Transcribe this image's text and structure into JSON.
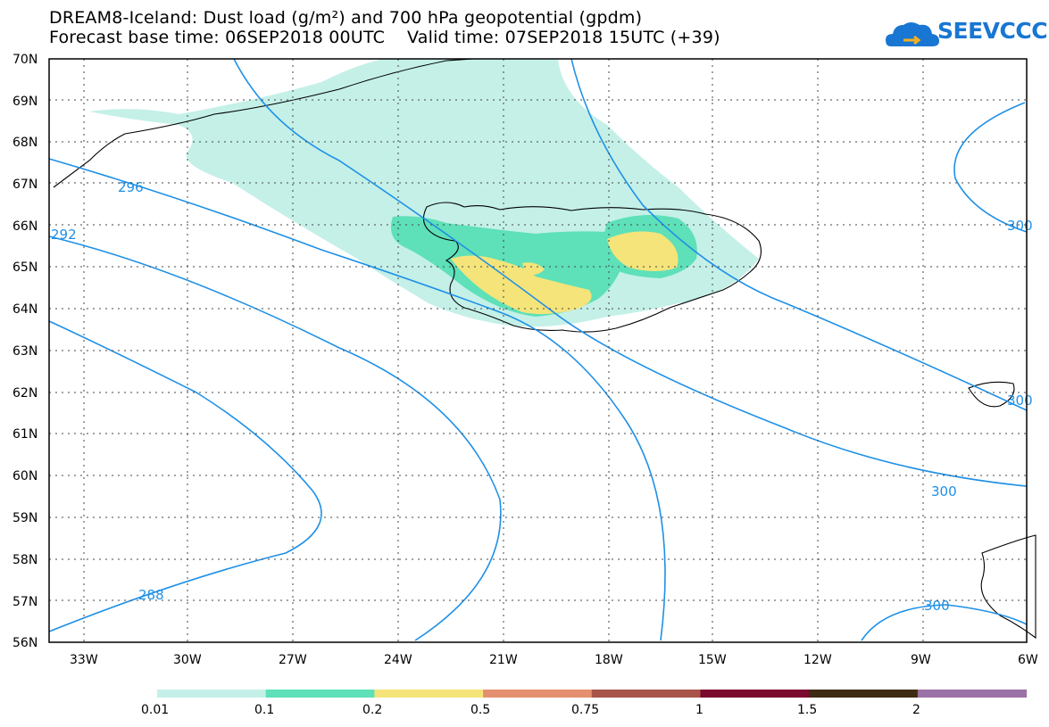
{
  "header": {
    "title_line1": "DREAM8-Iceland: Dust load (g/m²) and 700 hPa geopotential (gpdm)",
    "title_line2": "Forecast base time: 06SEP2018 00UTC    Valid time: 07SEP2018 15UTC (+39)",
    "logo_text": "SEEVCCC",
    "logo_icon": "cloud-icon",
    "logo_color": "#1976d2"
  },
  "axes": {
    "lat_labels": [
      "70N",
      "69N",
      "68N",
      "67N",
      "66N",
      "65N",
      "64N",
      "63N",
      "62N",
      "61N",
      "60N",
      "59N",
      "58N",
      "57N",
      "56N"
    ],
    "lon_labels": [
      "33W",
      "30W",
      "27W",
      "24W",
      "21W",
      "18W",
      "15W",
      "12W",
      "9W",
      "6W"
    ],
    "lat_range": [
      56,
      70
    ],
    "lon_range": [
      -34.2,
      -6
    ],
    "grid": "dotted"
  },
  "contours": {
    "color": "#1e90e6",
    "labels": [
      "296",
      "292",
      "288",
      "300",
      "300",
      "300",
      "300"
    ]
  },
  "legend": {
    "thresholds": [
      "0.01",
      "0.1",
      "0.2",
      "0.5",
      "0.75",
      "1",
      "1.5",
      "2"
    ],
    "colors": [
      "#c4f0e8",
      "#5ee0b8",
      "#f4e47a",
      "#e49070",
      "#a85448",
      "#7a0a2e",
      "#3e2b14",
      "#9b72a6"
    ]
  }
}
